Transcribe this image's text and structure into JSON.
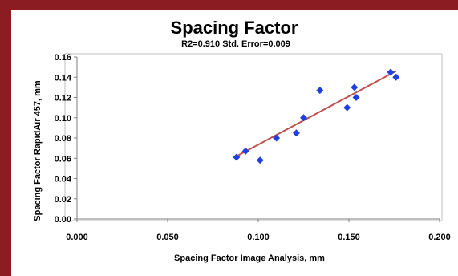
{
  "chart_data": {
    "type": "scatter",
    "title": "Spacing Factor",
    "subtitle": "R2=0.910  Std. Error=0.009",
    "xlabel": "Spacing Factor Image Analysis, mm",
    "ylabel": "Spacing Factor RapidAir 457, mm",
    "xlim": [
      0,
      0.2
    ],
    "ylim": [
      0,
      0.16
    ],
    "x_ticks": [
      "0.000",
      "0.050",
      "0.100",
      "0.150",
      "0.200"
    ],
    "y_ticks": [
      "0.00",
      "0.02",
      "0.04",
      "0.06",
      "0.08",
      "0.10",
      "0.12",
      "0.14",
      "0.16"
    ],
    "grid": false,
    "legend": "none",
    "marker_color": "#1f3fe0",
    "trendline_color": "#c0504d",
    "points": [
      {
        "x": 0.088,
        "y": 0.061
      },
      {
        "x": 0.093,
        "y": 0.067
      },
      {
        "x": 0.101,
        "y": 0.058
      },
      {
        "x": 0.11,
        "y": 0.08
      },
      {
        "x": 0.121,
        "y": 0.085
      },
      {
        "x": 0.125,
        "y": 0.1
      },
      {
        "x": 0.134,
        "y": 0.127
      },
      {
        "x": 0.149,
        "y": 0.11
      },
      {
        "x": 0.153,
        "y": 0.13
      },
      {
        "x": 0.154,
        "y": 0.12
      },
      {
        "x": 0.173,
        "y": 0.145
      },
      {
        "x": 0.176,
        "y": 0.14
      }
    ],
    "trendline": {
      "x": [
        0.088,
        0.176
      ],
      "y": [
        0.062,
        0.146
      ]
    }
  }
}
